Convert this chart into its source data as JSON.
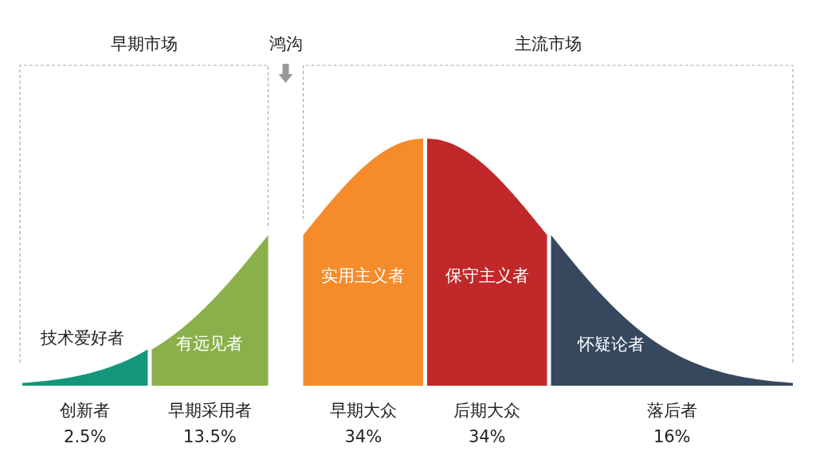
{
  "chart_data": {
    "type": "other",
    "categories": [
      "创新者",
      "早期采用者",
      "早期大众",
      "后期大众",
      "落后者"
    ],
    "values": [
      2.5,
      13.5,
      34,
      34,
      16
    ],
    "value_labels": [
      "2.5%",
      "13.5%",
      "34%",
      "34%",
      "16%"
    ],
    "colors": [
      "#13967a",
      "#8ab04b",
      "#f58b2a",
      "#c0282a",
      "#36485e"
    ],
    "annotations": [
      "技术爱好者",
      "有远见者",
      "实用主义者",
      "保守主义者",
      "怀疑论者",
      "早期市场",
      "鸿沟",
      "主流市场"
    ]
  }
}
